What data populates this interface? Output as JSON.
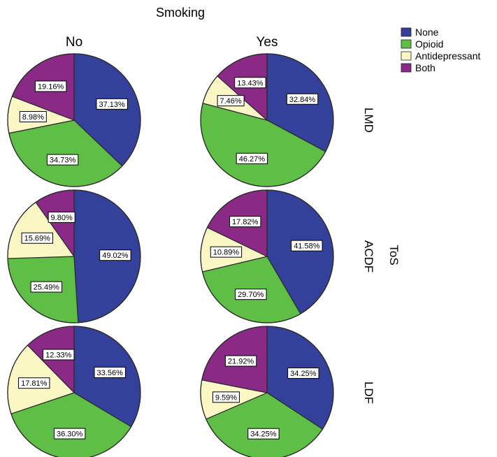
{
  "figure": {
    "title": "Smoking",
    "column_headers": [
      "No",
      "Yes"
    ],
    "row_panel_title": "ToS",
    "row_labels": [
      "LMD",
      "ACDF",
      "LDF"
    ]
  },
  "legend": {
    "position": "top-right",
    "items": [
      {
        "label": "None",
        "color": "#34419A"
      },
      {
        "label": "Opioid",
        "color": "#5FBE45"
      },
      {
        "label": "Antidepressant",
        "color": "#FAF7C5"
      },
      {
        "label": "Both",
        "color": "#8A2A86"
      }
    ]
  },
  "chart_data": {
    "type": "pie",
    "title": "Smoking",
    "facet_columns": {
      "title": "Smoking",
      "levels": [
        "No",
        "Yes"
      ]
    },
    "facet_rows": {
      "title": "ToS",
      "levels": [
        "LMD",
        "ACDF",
        "LDF"
      ]
    },
    "categories": [
      "None",
      "Opioid",
      "Antidepressant",
      "Both"
    ],
    "panels": [
      {
        "row": "LMD",
        "column": "No",
        "values": [
          37.13,
          34.73,
          8.98,
          19.16
        ],
        "labels": [
          "37.13%",
          "34.73%",
          "8.98%",
          "19.16%"
        ]
      },
      {
        "row": "LMD",
        "column": "Yes",
        "values": [
          32.84,
          46.27,
          7.46,
          13.43
        ],
        "labels": [
          "32.84%",
          "46.27%",
          "7.46%",
          "13.43%"
        ]
      },
      {
        "row": "ACDF",
        "column": "No",
        "values": [
          49.02,
          25.49,
          15.69,
          9.8
        ],
        "labels": [
          "49.02%",
          "25.49%",
          "15.69%",
          "9.80%"
        ]
      },
      {
        "row": "ACDF",
        "column": "Yes",
        "values": [
          41.58,
          29.7,
          10.89,
          17.82
        ],
        "labels": [
          "41.58%",
          "29.70%",
          "10.89%",
          "17.82%"
        ]
      },
      {
        "row": "LDF",
        "column": "No",
        "values": [
          33.56,
          36.3,
          17.81,
          12.33
        ],
        "labels": [
          "33.56%",
          "36.30%",
          "17.81%",
          "12.33%"
        ]
      },
      {
        "row": "LDF",
        "column": "Yes",
        "values": [
          34.25,
          34.25,
          9.59,
          21.92
        ],
        "labels": [
          "34.25%",
          "34.25%",
          "9.59%",
          "21.92%"
        ]
      }
    ]
  }
}
